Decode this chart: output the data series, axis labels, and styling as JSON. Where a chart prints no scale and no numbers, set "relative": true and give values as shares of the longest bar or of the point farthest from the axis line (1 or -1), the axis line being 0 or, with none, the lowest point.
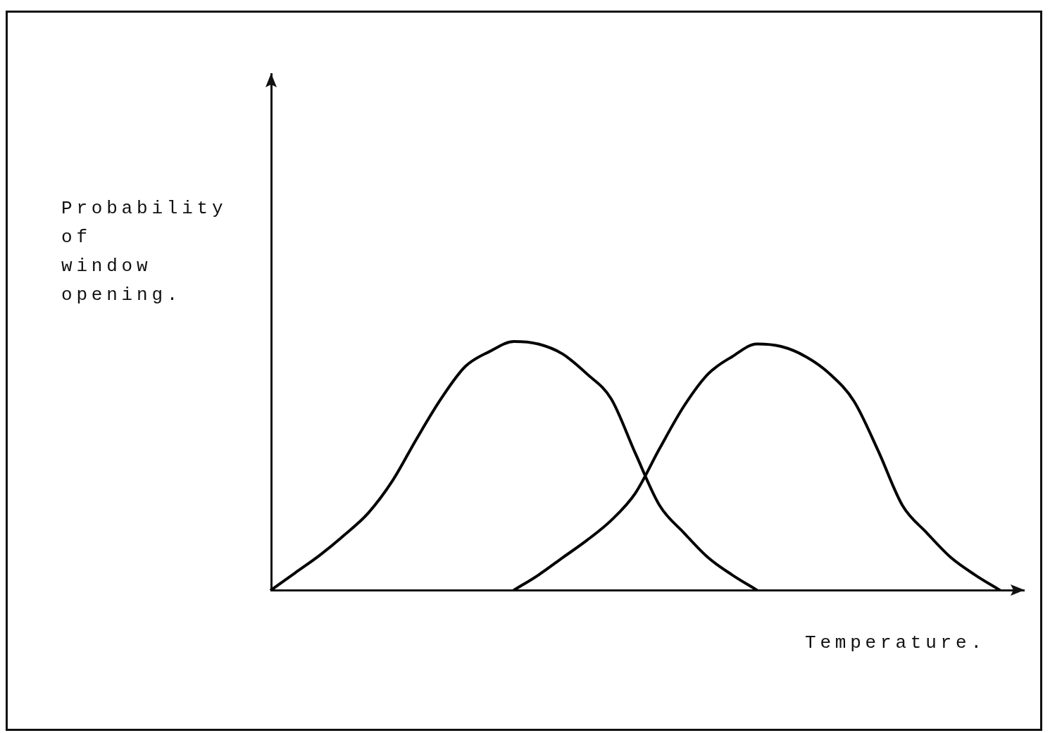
{
  "chart_data": {
    "type": "line",
    "xlabel": "Temperature.",
    "ylabel": "Probability of window opening.",
    "relative": true,
    "marker": "none",
    "line_style": "solid",
    "categories": [
      null,
      null,
      null,
      null,
      null,
      null,
      null,
      null,
      null,
      null,
      null,
      null,
      null,
      null,
      null,
      null,
      null,
      null,
      null,
      null,
      null,
      null,
      null,
      null,
      null,
      null,
      null,
      null,
      null,
      null,
      null,
      null
    ],
    "series": [
      {
        "color": "#000000",
        "values": [
          0,
          0.07,
          0.14,
          0.22,
          0.31,
          0.44,
          0.61,
          0.77,
          0.9,
          0.96,
          1,
          0.99,
          0.95,
          0.87,
          0.77,
          0.55,
          0.34,
          0.23,
          0.13,
          0.06,
          0,
          null,
          null,
          null,
          null,
          null,
          null,
          null,
          null,
          null,
          null,
          null
        ]
      },
      {
        "color": "#000000",
        "values": [
          null,
          null,
          null,
          null,
          null,
          null,
          null,
          null,
          null,
          null,
          0,
          0.06,
          0.13,
          0.2,
          0.28,
          0.39,
          0.57,
          0.74,
          0.87,
          0.94,
          0.99,
          0.98,
          0.94,
          0.87,
          0.76,
          0.56,
          0.34,
          0.23,
          0.13,
          0.06,
          0,
          null
        ]
      }
    ]
  }
}
